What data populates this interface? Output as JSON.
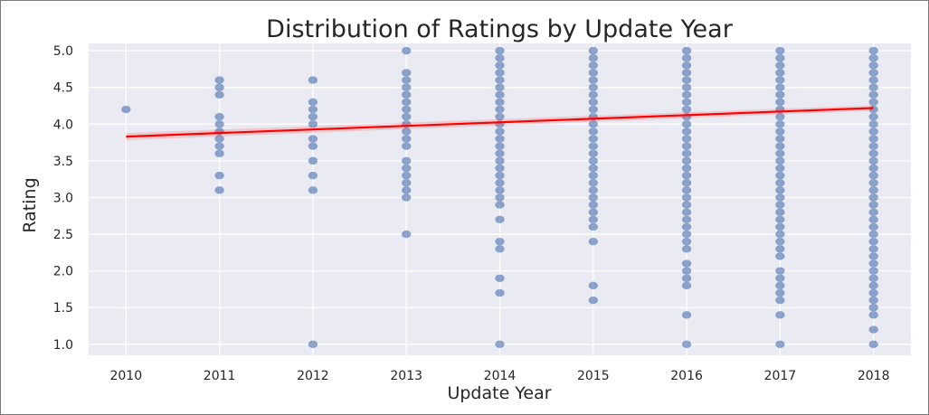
{
  "chart_data": {
    "type": "scatter",
    "title": "Distribution of Ratings by Update Year",
    "xlabel": "Update Year",
    "ylabel": "Rating",
    "x_ticks": [
      "2010",
      "2011",
      "2012",
      "2013",
      "2014",
      "2015",
      "2016",
      "2017",
      "2018"
    ],
    "y_ticks": [
      "1.0",
      "1.5",
      "2.0",
      "2.5",
      "3.0",
      "3.5",
      "4.0",
      "4.5",
      "5.0"
    ],
    "xlim": [
      2009.6,
      2018.4
    ],
    "ylim": [
      0.85,
      5.1
    ],
    "grid": true,
    "legend": "none",
    "series": [
      {
        "kind": "points",
        "color": "#4c72b0",
        "points": [
          {
            "year": 2010,
            "ratings": [
              4.2
            ]
          },
          {
            "year": 2011,
            "ratings": [
              3.1,
              3.3,
              3.6,
              3.7,
              3.8,
              3.9,
              4.0,
              4.1,
              4.4,
              4.5,
              4.6
            ]
          },
          {
            "year": 2012,
            "ratings": [
              1.0,
              3.1,
              3.3,
              3.5,
              3.7,
              3.8,
              4.0,
              4.1,
              4.2,
              4.3,
              4.6
            ]
          },
          {
            "year": 2013,
            "ratings": [
              2.5,
              3.0,
              3.1,
              3.2,
              3.3,
              3.4,
              3.5,
              3.7,
              3.8,
              3.9,
              4.0,
              4.1,
              4.2,
              4.3,
              4.4,
              4.5,
              4.6,
              4.7,
              5.0
            ]
          },
          {
            "year": 2014,
            "ratings": [
              1.0,
              1.7,
              1.9,
              2.3,
              2.4,
              2.7,
              2.9,
              3.0,
              3.1,
              3.2,
              3.3,
              3.4,
              3.5,
              3.6,
              3.7,
              3.8,
              3.9,
              4.0,
              4.1,
              4.2,
              4.3,
              4.4,
              4.5,
              4.6,
              4.7,
              4.8,
              4.9,
              5.0
            ]
          },
          {
            "year": 2015,
            "ratings": [
              1.6,
              1.8,
              2.4,
              2.6,
              2.7,
              2.8,
              2.9,
              3.0,
              3.1,
              3.2,
              3.3,
              3.4,
              3.5,
              3.6,
              3.7,
              3.8,
              3.9,
              4.0,
              4.1,
              4.2,
              4.3,
              4.4,
              4.5,
              4.6,
              4.7,
              4.8,
              4.9,
              5.0
            ]
          },
          {
            "year": 2016,
            "ratings": [
              1.0,
              1.4,
              1.8,
              1.9,
              2.0,
              2.1,
              2.3,
              2.4,
              2.5,
              2.6,
              2.7,
              2.8,
              2.9,
              3.0,
              3.1,
              3.2,
              3.3,
              3.4,
              3.5,
              3.6,
              3.7,
              3.8,
              3.9,
              4.0,
              4.1,
              4.2,
              4.3,
              4.4,
              4.5,
              4.6,
              4.7,
              4.8,
              4.9,
              5.0
            ]
          },
          {
            "year": 2017,
            "ratings": [
              1.0,
              1.4,
              1.6,
              1.7,
              1.8,
              1.9,
              2.0,
              2.2,
              2.3,
              2.4,
              2.5,
              2.6,
              2.7,
              2.8,
              2.9,
              3.0,
              3.1,
              3.2,
              3.3,
              3.4,
              3.5,
              3.6,
              3.7,
              3.8,
              3.9,
              4.0,
              4.1,
              4.2,
              4.3,
              4.4,
              4.5,
              4.6,
              4.7,
              4.8,
              4.9,
              5.0
            ]
          },
          {
            "year": 2018,
            "ratings": [
              1.0,
              1.2,
              1.4,
              1.5,
              1.6,
              1.7,
              1.8,
              1.9,
              2.0,
              2.1,
              2.2,
              2.3,
              2.4,
              2.5,
              2.6,
              2.7,
              2.8,
              2.9,
              3.0,
              3.1,
              3.2,
              3.3,
              3.4,
              3.5,
              3.6,
              3.7,
              3.8,
              3.9,
              4.0,
              4.1,
              4.2,
              4.3,
              4.4,
              4.5,
              4.6,
              4.7,
              4.8,
              4.9,
              5.0
            ]
          }
        ]
      },
      {
        "kind": "regression_line",
        "color": "#ff0000",
        "from": {
          "x": 2010,
          "y": 3.83
        },
        "to": {
          "x": 2018,
          "y": 4.22
        }
      }
    ]
  }
}
